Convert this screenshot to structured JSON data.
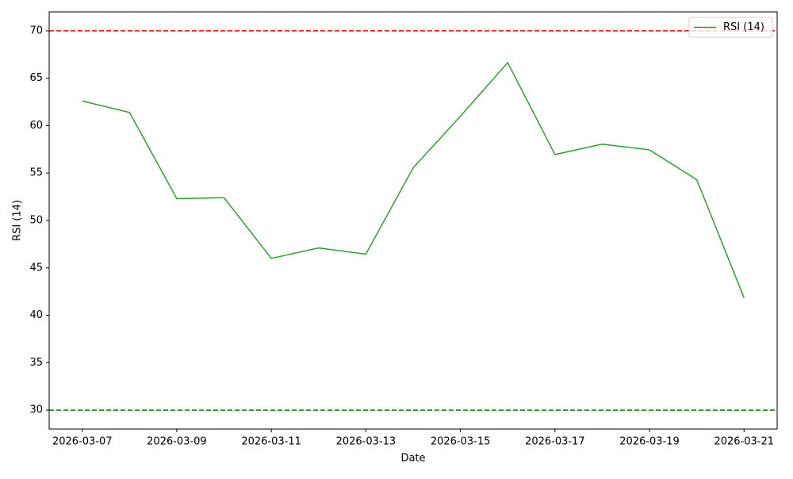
{
  "chart_data": {
    "type": "line",
    "x": [
      "2026-03-07",
      "2026-03-08",
      "2026-03-09",
      "2026-03-10",
      "2026-03-11",
      "2026-03-12",
      "2026-03-13",
      "2026-03-14",
      "2026-03-15",
      "2026-03-16",
      "2026-03-17",
      "2026-03-18",
      "2026-03-19",
      "2026-03-20",
      "2026-03-21"
    ],
    "series": [
      {
        "name": "RSI (14)",
        "color": "#2ca02c",
        "values": [
          62.6,
          61.4,
          52.3,
          52.4,
          46.0,
          47.1,
          46.45,
          55.55,
          61.0,
          66.65,
          56.95,
          58.05,
          57.45,
          54.3,
          41.85
        ]
      }
    ],
    "hlines": [
      {
        "value": 70,
        "color": "#ff0000"
      },
      {
        "value": 30,
        "color": "#008000"
      }
    ],
    "xlabel": "Date",
    "ylabel": "RSI (14)",
    "xlim": [
      "2026-03-06T07:12",
      "2026-03-21T16:48"
    ],
    "xticks": [
      "2026-03-07",
      "2026-03-09",
      "2026-03-11",
      "2026-03-13",
      "2026-03-15",
      "2026-03-17",
      "2026-03-19",
      "2026-03-21"
    ],
    "ylim": [
      28,
      72
    ],
    "yticks": [
      30,
      35,
      40,
      45,
      50,
      55,
      60,
      65,
      70
    ],
    "grid": false,
    "legend": "upper-right"
  }
}
